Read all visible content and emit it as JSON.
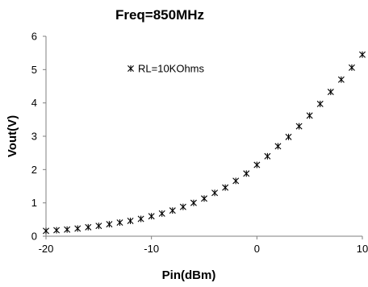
{
  "chart_data": {
    "type": "scatter",
    "title": "Freq=850MHz",
    "xlabel": "Pin(dBm)",
    "ylabel": "Vout(V)",
    "xlim": [
      -20,
      10
    ],
    "ylim": [
      0,
      6
    ],
    "xticks": [
      -20,
      -10,
      0,
      10
    ],
    "yticks": [
      0,
      1,
      2,
      3,
      4,
      5,
      6
    ],
    "grid": false,
    "legend_position": "upper-left-inside",
    "series": [
      {
        "name": "RL=10KOhms",
        "marker": "asterisk",
        "color": "#000000",
        "x": [
          -20,
          -19,
          -18,
          -17,
          -16,
          -15,
          -14,
          -13,
          -12,
          -11,
          -10,
          -9,
          -8,
          -7,
          -6,
          -5,
          -4,
          -3,
          -2,
          -1,
          0,
          1,
          2,
          3,
          4,
          5,
          6,
          7,
          8,
          9,
          10
        ],
        "y": [
          0.16,
          0.18,
          0.2,
          0.23,
          0.27,
          0.31,
          0.36,
          0.41,
          0.46,
          0.52,
          0.6,
          0.68,
          0.77,
          0.88,
          1.0,
          1.13,
          1.3,
          1.46,
          1.66,
          1.88,
          2.14,
          2.4,
          2.7,
          2.98,
          3.3,
          3.62,
          3.97,
          4.33,
          4.7,
          5.06,
          5.45
        ]
      }
    ]
  }
}
